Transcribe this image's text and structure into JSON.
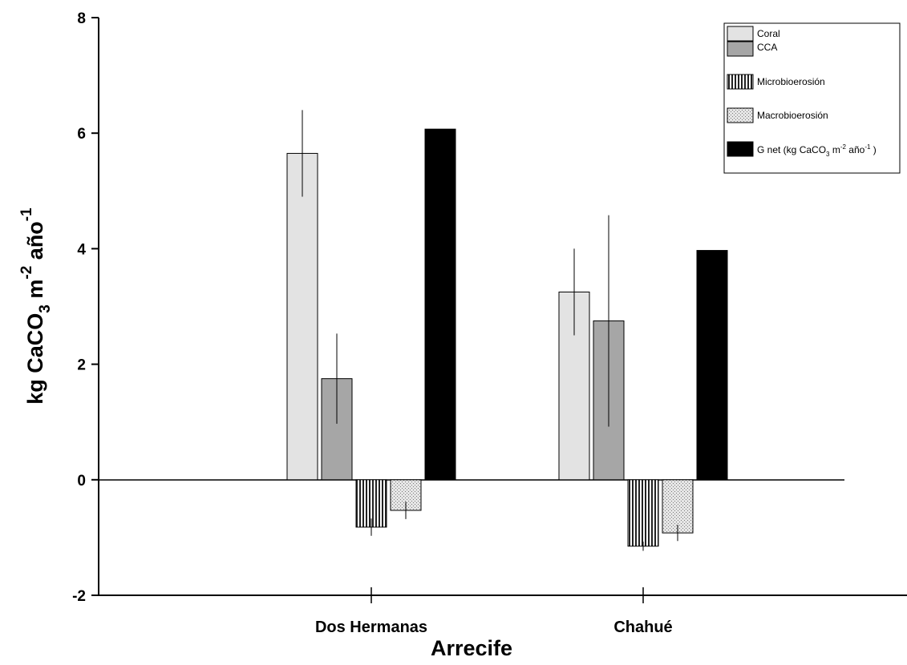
{
  "chart_data": {
    "type": "bar",
    "title": "",
    "xlabel": "Arrecife",
    "ylabel": {
      "base": "kg CaCO",
      "sub": "3",
      "mid": " m",
      "sup1": "-2",
      "tail": " año",
      "sup2": "-1"
    },
    "ylim": [
      -2,
      8
    ],
    "yticks": [
      "-2",
      "0",
      "2",
      "4",
      "6",
      "8"
    ],
    "categories": [
      "Dos Hermanas",
      "Chahué"
    ],
    "grid": false,
    "legend_position": "top-right",
    "series": [
      {
        "name": "Coral",
        "values": [
          5.65,
          3.25
        ],
        "errors": [
          0.75,
          0.75
        ],
        "color": "#e3e3e3",
        "pattern": "solid"
      },
      {
        "name": "CCA",
        "values": [
          1.75,
          2.75
        ],
        "errors": [
          0.78,
          1.83
        ],
        "color": "#a6a6a6",
        "pattern": "solid"
      },
      {
        "name": "Microbioerosión",
        "values": [
          -0.82,
          -1.15
        ],
        "errors": [
          0.15,
          0.08
        ],
        "color": "#444444",
        "pattern": "vstripes"
      },
      {
        "name": "Macrobioerosión",
        "values": [
          -0.53,
          -0.92
        ],
        "errors": [
          0.15,
          0.14
        ],
        "color": "#dcdcdc",
        "pattern": "dots"
      },
      {
        "name": "G net (kg CaCO3 m-2 año-1)",
        "name_parts": {
          "a": "G net (kg CaCO",
          "b": "3",
          "c": " m",
          "d": "-2",
          "e": " año",
          "f": "-1",
          "g": " )"
        },
        "values": [
          6.07,
          3.97
        ],
        "errors": [
          0,
          0
        ],
        "color": "#000000",
        "pattern": "solid"
      }
    ]
  }
}
